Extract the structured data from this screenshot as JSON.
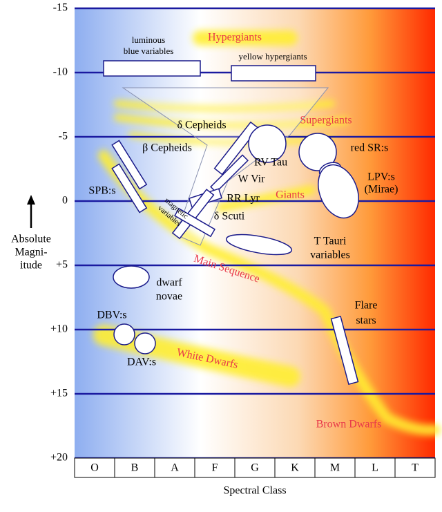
{
  "y_axis": {
    "title": [
      "Absolute",
      "Magni-",
      "itude"
    ],
    "ticks": [
      "-15",
      "-10",
      "-5",
      "0",
      "+5",
      "+10",
      "+15",
      "+20"
    ]
  },
  "x_axis": {
    "title": "Spectral Class",
    "classes": [
      "O",
      "B",
      "A",
      "F",
      "G",
      "K",
      "M",
      "L",
      "T"
    ]
  },
  "regions": [
    "Hypergiants",
    "Supergiants",
    "Giants",
    "Main Sequence",
    "White Dwarfs",
    "Brown Dwarfs"
  ],
  "variables": {
    "luminous_blue_variables": [
      "luminous",
      "blue variables"
    ],
    "yellow_hypergiants": "yellow hypergiants",
    "delta_cepheids": "δ Cepheids",
    "beta_cepheids": "β Cepheids",
    "rv_tau": "RV Tau",
    "w_vir": "W Vir",
    "rr_lyr": "RR Lyr",
    "delta_scuti": "δ Scuti",
    "spb": "SPB:s",
    "magnetic_variables": [
      "magnetic",
      "variables"
    ],
    "red_sr": "red SR:s",
    "lpv": [
      "LPV:s",
      "(Mirae)"
    ],
    "t_tauri": [
      "T Tauri",
      "variables"
    ],
    "dwarf_novae": [
      "dwarf",
      "novae"
    ],
    "dbv": "DBV:s",
    "dav": "DAV:s",
    "flare_stars": [
      "Flare",
      "stars"
    ]
  }
}
